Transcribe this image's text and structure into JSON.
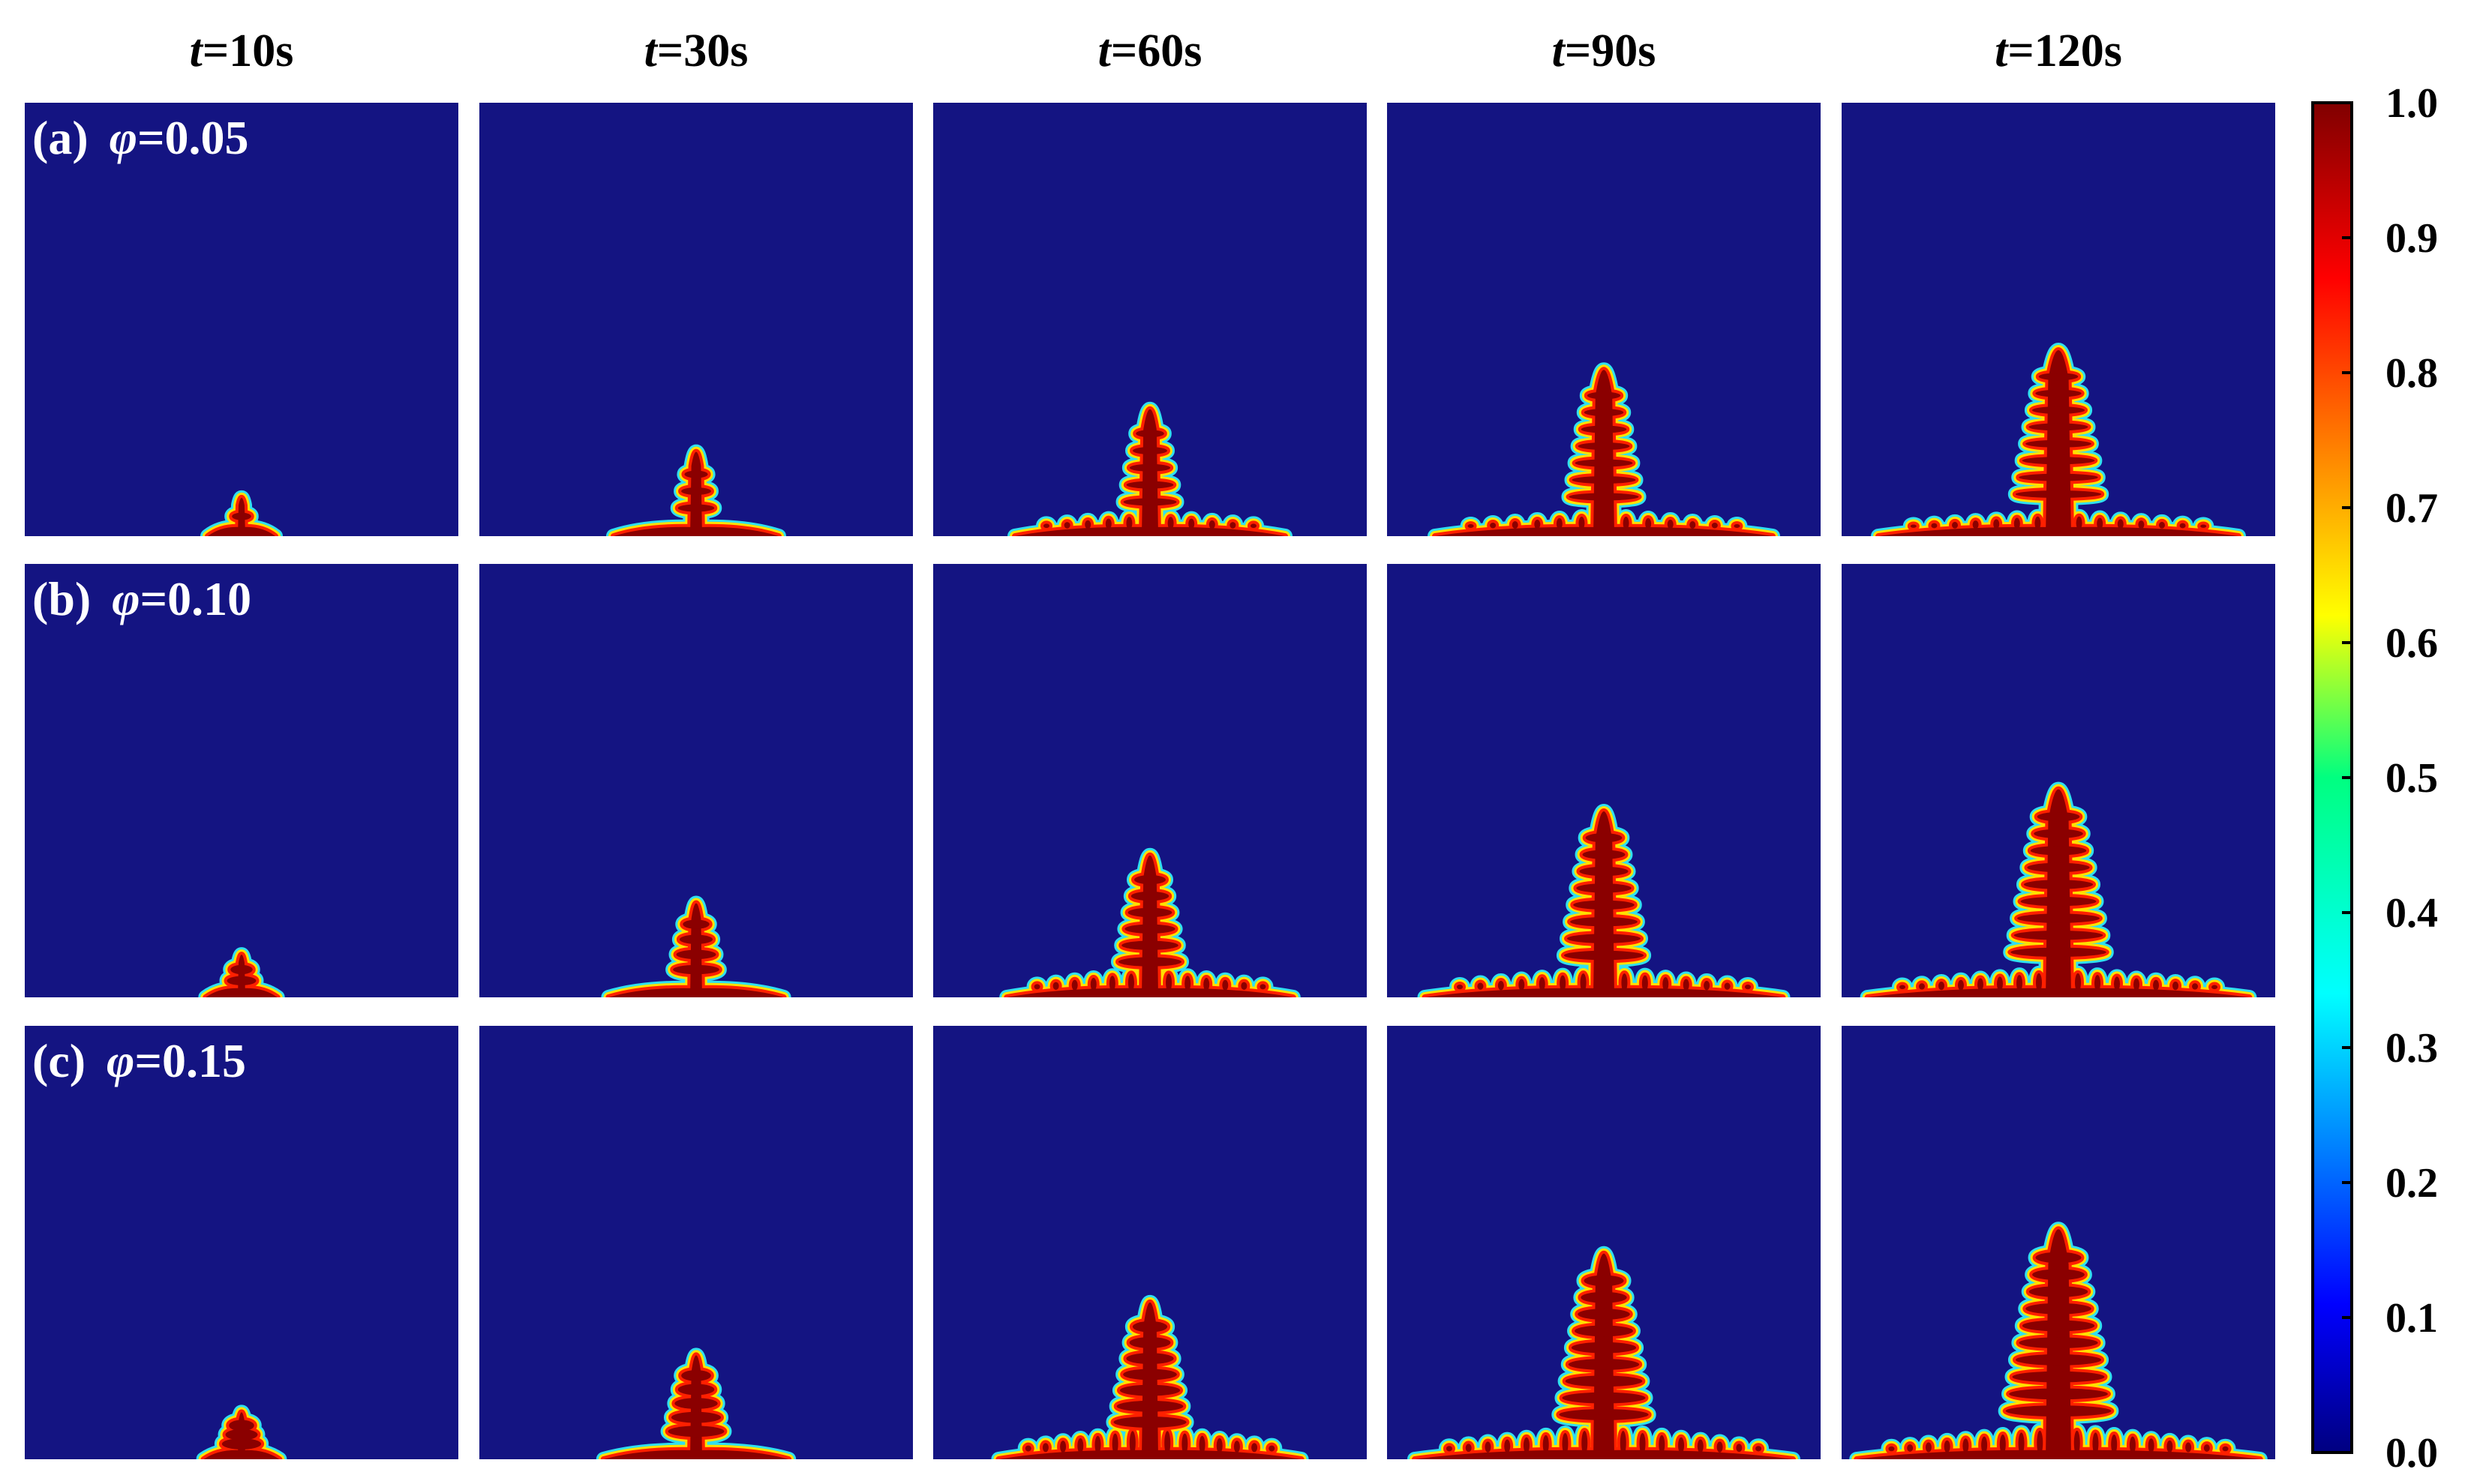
{
  "figure": {
    "column_headers": [
      {
        "var": "t",
        "rest": "=10s"
      },
      {
        "var": "t",
        "rest": "=30s"
      },
      {
        "var": "t",
        "rest": "=60s"
      },
      {
        "var": "t",
        "rest": "=90s"
      },
      {
        "var": "t",
        "rest": "=120s"
      }
    ],
    "rows": [
      {
        "tag": "(a)",
        "var": "φ",
        "rest": "=0.05",
        "phi": 0.05
      },
      {
        "tag": "(b)",
        "var": "φ",
        "rest": "=0.10",
        "phi": 0.1
      },
      {
        "tag": "(c)",
        "var": "φ",
        "rest": "=0.15",
        "phi": 0.15
      }
    ],
    "times_s": [
      10,
      30,
      60,
      90,
      120
    ],
    "colorbar": {
      "ticks": [
        "0.0",
        "0.1",
        "0.2",
        "0.3",
        "0.4",
        "0.5",
        "0.6",
        "0.7",
        "0.8",
        "0.9",
        "1.0"
      ],
      "min": 0.0,
      "max": 1.0,
      "colormap": "jet"
    },
    "colors": {
      "background_phase": "#141482",
      "solid_phase": "#8b0000",
      "interface_red": "#ff2000",
      "interface_yellow": "#ffe000",
      "interface_cyan": "#30e0f0"
    }
  }
}
